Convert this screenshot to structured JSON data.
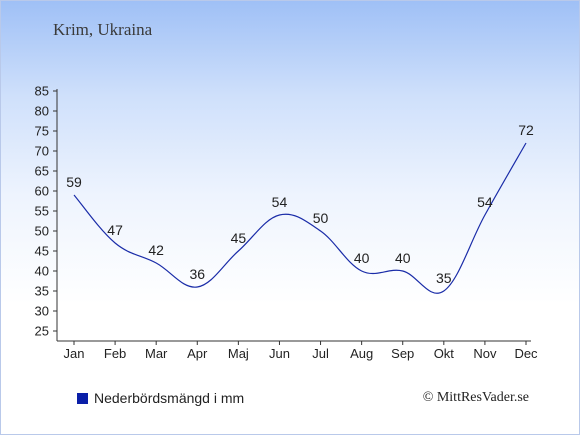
{
  "title": "Krim, Ukraina",
  "legend_label": "Nederbördsmängd i mm",
  "credit": "© MittResVader.se",
  "colors": {
    "line": "#1a2ca8",
    "swatch": "#0a1fa8"
  },
  "chart_data": {
    "type": "line",
    "categories": [
      "Jan",
      "Feb",
      "Mar",
      "Apr",
      "Maj",
      "Jun",
      "Jul",
      "Aug",
      "Sep",
      "Okt",
      "Nov",
      "Dec"
    ],
    "series": [
      {
        "name": "Nederbördsmängd i mm",
        "values": [
          59,
          47,
          42,
          36,
          45,
          54,
          50,
          40,
          40,
          35,
          54,
          72
        ]
      }
    ],
    "ylim": [
      25,
      85
    ],
    "yticks": [
      25,
      30,
      35,
      40,
      45,
      50,
      55,
      60,
      65,
      70,
      75,
      80,
      85
    ],
    "data_labels": true,
    "legend_position": "bottom-left"
  }
}
